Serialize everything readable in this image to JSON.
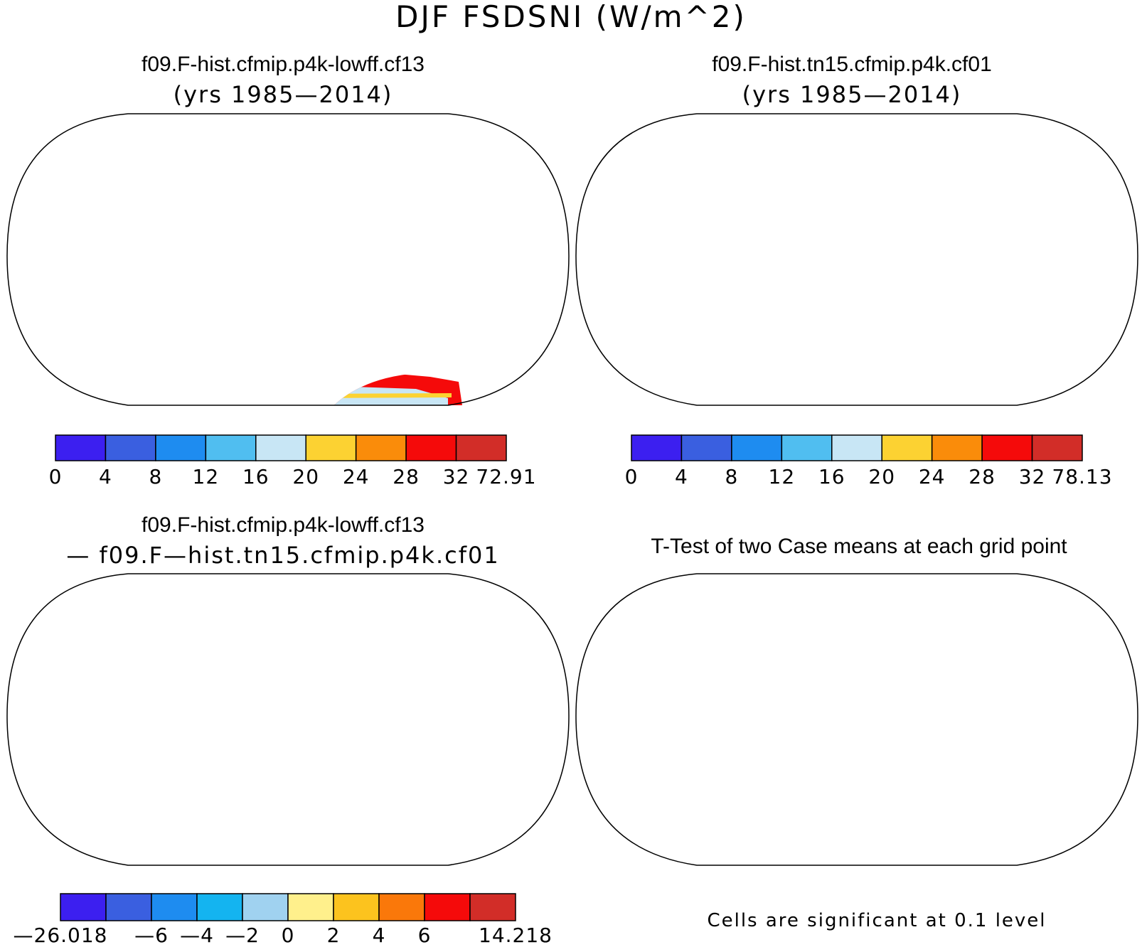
{
  "figure": {
    "title": "DJF FSDSNI (W/m^2)",
    "note": "Cells are significant at 0.1 level"
  },
  "panels": [
    {
      "id": "case1",
      "title_line1": "f09.F-hist.cfmip.p4k-lowff.cf13",
      "title_line2": "(yrs 1985—2014)",
      "colorbar": {
        "labels": [
          "0",
          "4",
          "8",
          "12",
          "16",
          "20",
          "24",
          "28",
          "32",
          "72.91"
        ],
        "colors": [
          "#3c1ff0",
          "#3a5fe0",
          "#1e8cf0",
          "#50bef0",
          "#c8e6f5",
          "#fcd232",
          "#fa8c0a",
          "#f50a0a",
          "#d22d28"
        ]
      }
    },
    {
      "id": "case2",
      "title_line1": "f09.F-hist.tn15.cfmip.p4k.cf01",
      "title_line2": "(yrs 1985—2014)",
      "colorbar": {
        "labels": [
          "0",
          "4",
          "8",
          "12",
          "16",
          "20",
          "24",
          "28",
          "32",
          "78.13"
        ],
        "colors": [
          "#3c1ff0",
          "#3a5fe0",
          "#1e8cf0",
          "#50bef0",
          "#c8e6f5",
          "#fcd232",
          "#fa8c0a",
          "#f50a0a",
          "#d22d28"
        ]
      }
    },
    {
      "id": "difference",
      "title_line1": "f09.F-hist.cfmip.p4k-lowff.cf13",
      "title_line2": "— f09.F—hist.tn15.cfmip.p4k.cf01",
      "colorbar": {
        "labels": [
          "—26.018",
          "",
          "—6",
          "—4",
          "—2",
          "0",
          "2",
          "4",
          "6",
          "",
          "14.218"
        ],
        "colors": [
          "#3c1ff0",
          "#3a5fe0",
          "#1e8cf0",
          "#14b4f0",
          "#a0d2f0",
          "#fff08c",
          "#fcc31e",
          "#fa780a",
          "#f50a0a",
          "#d22d28"
        ]
      }
    },
    {
      "id": "ttest",
      "title_line1": "T-Test of two Case means at each grid point",
      "significance_color": "#f50505"
    }
  ]
}
